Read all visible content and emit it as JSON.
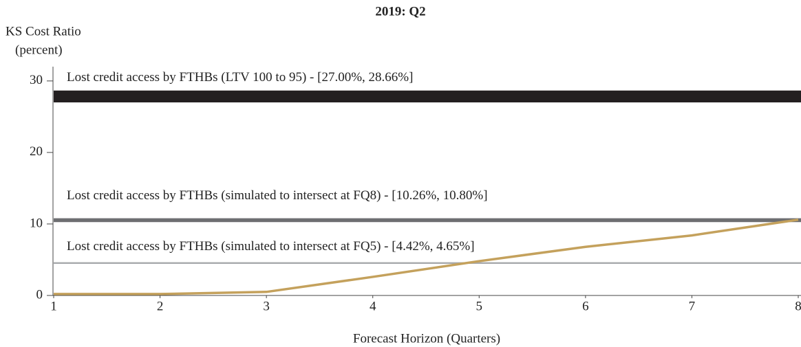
{
  "chart_data": {
    "type": "line",
    "title": "2019: Q2",
    "y_label": "KS Cost Ratio",
    "y_label_unit": "(percent)",
    "x_label": "Forecast Horizon (Quarters)",
    "x": [
      1,
      2,
      3,
      4,
      5,
      6,
      7,
      8
    ],
    "series": [
      {
        "color": "#c4a15c",
        "values": [
          0.2,
          0.2,
          0.5,
          2.6,
          4.8,
          6.8,
          8.4,
          10.6
        ]
      }
    ],
    "bands": [
      {
        "label": "Lost credit access by FTHBs (LTV 100 to 95) - [27.00%, 28.66%]",
        "low": 27.0,
        "high": 28.66,
        "color": "#231f20"
      },
      {
        "label": "Lost credit access by FTHBs (simulated to intersect at FQ8) - [10.26%, 10.80%]",
        "low": 10.26,
        "high": 10.8,
        "color": "#6d6e71"
      },
      {
        "label": "Lost credit access by FTHBs (simulated to intersect at FQ5) - [4.42%, 4.65%]",
        "low": 4.42,
        "high": 4.65,
        "color": "#a7a9ac"
      }
    ],
    "xlim": [
      1,
      8
    ],
    "xticks": [
      1,
      2,
      3,
      4,
      5,
      6,
      7,
      8
    ],
    "ylim": [
      0,
      32
    ],
    "yticks": [
      0,
      10,
      20,
      30
    ]
  }
}
